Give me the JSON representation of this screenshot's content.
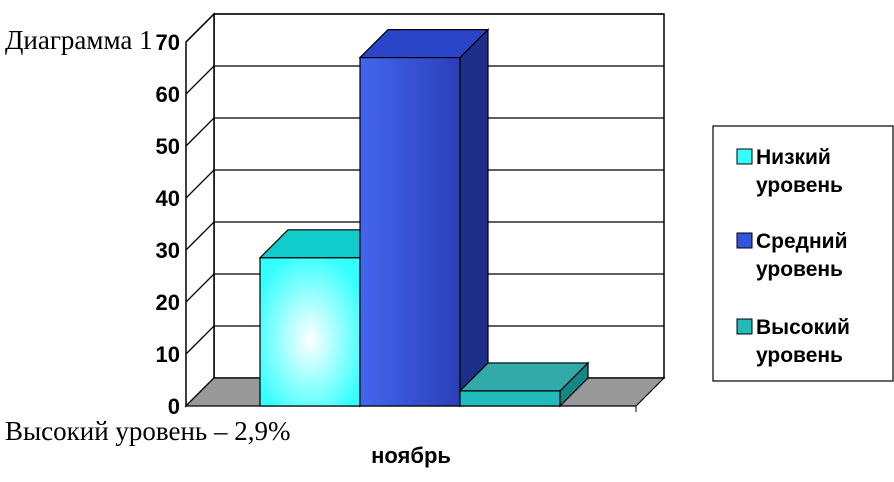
{
  "captions": {
    "top": "Диаграмма 1",
    "bottom": "Высокий уровень – 2,9%"
  },
  "chart_data": {
    "type": "bar",
    "categories": [
      "ноябрь"
    ],
    "series": [
      {
        "name_lines": [
          "Низкий",
          "уровень"
        ],
        "values": [
          28.5
        ],
        "color": "#33ffff"
      },
      {
        "name_lines": [
          "Средний",
          "уровень"
        ],
        "values": [
          67
        ],
        "color": "#3355dd"
      },
      {
        "name_lines": [
          "Высокий",
          "уровень"
        ],
        "values": [
          2.9
        ],
        "color": "#22bbbb"
      }
    ],
    "y_ticks": [
      "0",
      "10",
      "20",
      "30",
      "40",
      "50",
      "60",
      "70"
    ],
    "ylim": [
      0,
      70
    ],
    "grid": true,
    "legend_position": "right",
    "style": "3d-column"
  }
}
